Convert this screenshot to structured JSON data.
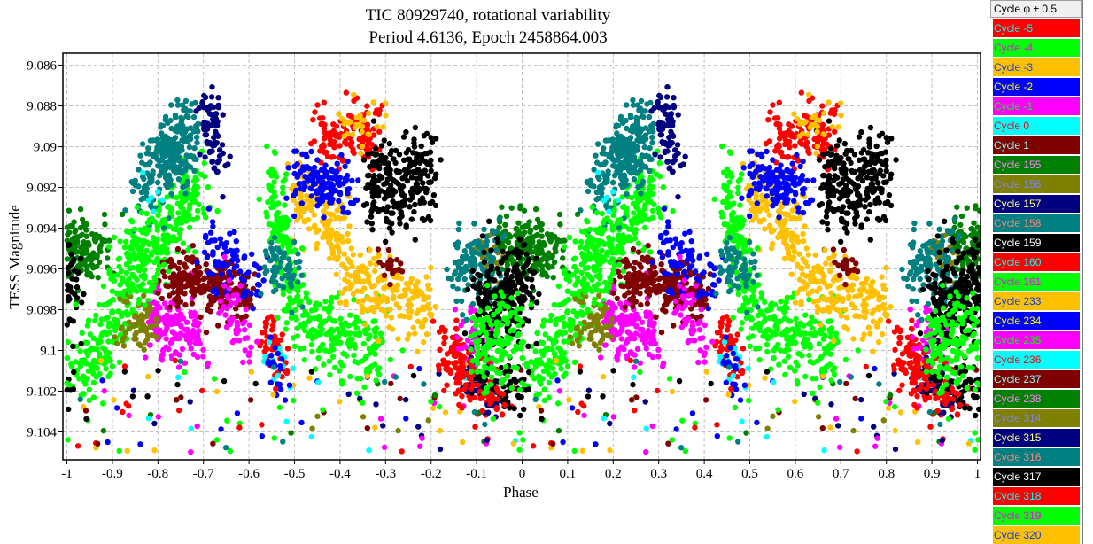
{
  "chart_data": {
    "type": "scatter",
    "title": [
      "TIC 80929740, rotational variability",
      "Period 4.6136, Epoch 2458864.003"
    ],
    "xlabel": "Phase",
    "ylabel": "TESS Magnitude",
    "xlim": [
      -1.0088,
      1.0068
    ],
    "ylim": [
      9.10537,
      9.08541
    ],
    "y_inverted": true,
    "grid": true,
    "x_ticks": [
      "-1",
      "-0.9",
      "-0.8",
      "-0.7",
      "-0.6",
      "-0.5",
      "-0.4",
      "-0.3",
      "-0.2",
      "-0.1",
      "0",
      "0.1",
      "0.2",
      "0.3",
      "0.4",
      "0.5",
      "0.6",
      "0.7",
      "0.8",
      "0.9",
      "1"
    ],
    "y_ticks": [
      "9.086",
      "9.088",
      "9.09",
      "9.092",
      "9.094",
      "9.096",
      "9.098",
      "9.1",
      "9.102",
      "9.104"
    ],
    "phase_repeat": "points plotted at phase, phase-1 and phase+1",
    "point_model": "clusters: [phase1, mag1, phase2, mag2, mag_sd, count] sampled along segment",
    "legend": {
      "header": "Cycle φ ± 0.5",
      "placement": "right"
    },
    "series": [
      {
        "name": "Cycle -5",
        "color": "#ff0000",
        "clusters": [
          [
            0.55,
            9.0895,
            0.68,
            9.0895,
            0.0008,
            120
          ],
          [
            0.44,
            9.099,
            0.47,
            9.101,
            0.0007,
            50
          ]
        ],
        "outliers": 8
      },
      {
        "name": "Cycle -4",
        "color": "#00ff00",
        "clusters": [
          [
            0.02,
            9.1015,
            0.3,
            9.0915,
            0.0012,
            350
          ]
        ],
        "outliers": 8
      },
      {
        "name": "Cycle -3",
        "color": "#ffc000",
        "clusters": [
          [
            0.5,
            9.092,
            0.62,
            9.095,
            0.001,
            150
          ]
        ],
        "outliers": 8
      },
      {
        "name": "Cycle -2",
        "color": "#0000ff",
        "clusters": [
          [
            0.5,
            9.0915,
            0.62,
            9.092,
            0.0007,
            150
          ]
        ],
        "outliers": 8
      },
      {
        "name": "Cycle -1",
        "color": "#ff00ff",
        "clusters": [
          [
            0.18,
            9.0985,
            0.3,
            9.0995,
            0.0008,
            150
          ]
        ],
        "outliers": 8
      },
      {
        "name": "Cycle 0",
        "color": "#00ffff",
        "clusters": [
          [
            0.44,
            9.1,
            0.48,
            9.101,
            0.0006,
            15
          ]
        ],
        "outliers": 5
      },
      {
        "name": "Cycle 1",
        "color": "#800000",
        "clusters": [
          [
            0.22,
            9.0965,
            0.4,
            9.097,
            0.0007,
            250
          ]
        ],
        "outliers": 8
      },
      {
        "name": "Cycle 155",
        "color": "#008000",
        "clusters": [
          [
            0.95,
            9.0945,
            1.05,
            9.0955,
            0.0009,
            150
          ]
        ],
        "outliers": 5
      },
      {
        "name": "Cycle 156",
        "color": "#808000",
        "clusters": [
          [
            0.12,
            9.099,
            0.2,
            9.098,
            0.0007,
            60
          ]
        ],
        "outliers": 5
      },
      {
        "name": "Cycle 157",
        "color": "#000080",
        "clusters": [
          [
            0.3,
            9.088,
            0.34,
            9.0905,
            0.0008,
            80
          ]
        ],
        "outliers": 8
      },
      {
        "name": "Cycle 158",
        "color": "#008080",
        "clusters": [
          [
            0.16,
            9.092,
            0.28,
            9.089,
            0.0011,
            250
          ]
        ],
        "outliers": 5
      },
      {
        "name": "Cycle 159",
        "color": "#000000",
        "clusters": [
          [
            0.66,
            9.092,
            0.8,
            9.0915,
            0.0011,
            250
          ]
        ],
        "outliers": 5
      },
      {
        "name": "Cycle 160",
        "color": "#ff0000",
        "clusters": [
          [
            0.82,
            9.0995,
            0.9,
            9.1015,
            0.0007,
            90
          ]
        ],
        "outliers": 5
      },
      {
        "name": "Cycle 161",
        "color": "#00ff00",
        "clusters": [
          [
            0.45,
            9.092,
            0.5,
            9.098,
            0.0012,
            150
          ],
          [
            0.5,
            9.0985,
            0.7,
            9.1,
            0.001,
            200
          ]
        ],
        "outliers": 8
      },
      {
        "name": "Cycle 233",
        "color": "#ffc000",
        "clusters": [
          [
            0.6,
            9.0965,
            0.8,
            9.098,
            0.0008,
            180
          ]
        ],
        "outliers": 8
      },
      {
        "name": "Cycle 234",
        "color": "#0000ff",
        "clusters": [
          [
            0.3,
            9.095,
            0.42,
            9.0965,
            0.0008,
            80
          ],
          [
            0.45,
            9.1,
            0.47,
            9.102,
            0.0006,
            20
          ]
        ],
        "outliers": 6
      },
      {
        "name": "Cycle 235",
        "color": "#ff00ff",
        "clusters": [
          [
            0.88,
            9.099,
            0.92,
            9.1,
            0.0007,
            50
          ],
          [
            0.35,
            9.0975,
            0.4,
            9.1,
            0.0007,
            50
          ]
        ],
        "outliers": 6
      },
      {
        "name": "Cycle 236",
        "color": "#00ffff",
        "clusters": [
          [
            0.15,
            9.0925,
            0.2,
            9.093,
            0.0005,
            6
          ]
        ],
        "outliers": 4
      },
      {
        "name": "Cycle 237",
        "color": "#800000",
        "clusters": [
          [
            0.7,
            9.0955,
            0.73,
            9.0965,
            0.0004,
            20
          ]
        ],
        "outliers": 5
      },
      {
        "name": "Cycle 238",
        "color": "#008000",
        "clusters": [
          [
            0.0,
            9.095,
            0.1,
            9.095,
            0.0008,
            60
          ]
        ],
        "outliers": 4
      },
      {
        "name": "Cycle 314",
        "color": "#808000",
        "clusters": [
          [
            0.9,
            9.095,
            0.95,
            9.0955,
            0.0006,
            30
          ]
        ],
        "outliers": 4
      },
      {
        "name": "Cycle 315",
        "color": "#000080",
        "clusters": [
          [
            0.88,
            9.101,
            0.95,
            9.102,
            0.0007,
            40
          ]
        ],
        "outliers": 5
      },
      {
        "name": "Cycle 316",
        "color": "#008080",
        "clusters": [
          [
            0.85,
            9.096,
            0.95,
            9.0955,
            0.0009,
            120
          ],
          [
            0.44,
            9.095,
            0.5,
            9.097,
            0.0008,
            60
          ]
        ],
        "outliers": 5
      },
      {
        "name": "Cycle 317",
        "color": "#000000",
        "clusters": [
          [
            0.9,
            9.098,
            1.02,
            9.097,
            0.0012,
            250
          ],
          [
            0.9,
            9.1015,
            1.0,
            9.102,
            0.0005,
            60
          ]
        ],
        "outliers": 5
      },
      {
        "name": "Cycle 318",
        "color": "#ff0000",
        "clusters": [
          [
            0.85,
            9.101,
            0.96,
            9.1025,
            0.0006,
            60
          ]
        ],
        "outliers": 5
      },
      {
        "name": "Cycle 319",
        "color": "#00ff00",
        "clusters": [
          [
            0.9,
            9.1,
            1.0,
            9.099,
            0.0012,
            150
          ],
          [
            0.1,
            9.097,
            0.2,
            9.094,
            0.0012,
            100
          ]
        ],
        "outliers": 6
      },
      {
        "name": "Cycle 320",
        "color": "#ffc000",
        "clusters": [
          [
            0.6,
            9.089,
            0.7,
            9.089,
            0.0006,
            30
          ]
        ],
        "outliers": 6
      }
    ]
  }
}
